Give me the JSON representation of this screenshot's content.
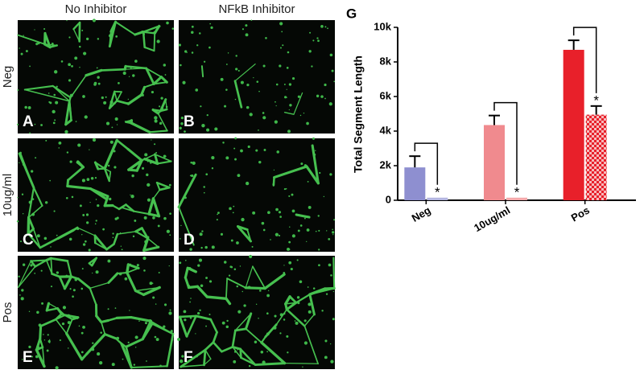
{
  "panels": {
    "column_titles": [
      "No Inhibitor",
      "NFkB Inhibitor"
    ],
    "row_titles": [
      "Neg",
      "10ug/ml",
      "Pos"
    ],
    "letters": [
      "A",
      "B",
      "C",
      "D",
      "E",
      "F"
    ]
  },
  "chart_data": {
    "type": "bar",
    "panel_letter": "G",
    "y_label": "Total Segment Length",
    "categories": [
      "Neg",
      "10ug/ml",
      "Pos"
    ],
    "series": [
      {
        "colors": [
          "#8e8fd0",
          "#f08a8e",
          "#e8202a"
        ],
        "values": [
          1900,
          4350,
          8700
        ],
        "errors": [
          650,
          550,
          550
        ]
      },
      {
        "colors": [
          "#b4b6e0",
          "#f4a9ab",
          "#e8202a"
        ],
        "pattern": [
          false,
          false,
          true
        ],
        "values": [
          150,
          150,
          4950
        ],
        "errors": [
          0,
          0,
          500
        ],
        "significance": [
          "*",
          "*",
          "*"
        ]
      }
    ],
    "ylim": [
      0,
      10000
    ],
    "yticks": [
      0,
      {
        "value": 2000,
        "label": "2k"
      },
      {
        "value": 4000,
        "label": "4k"
      },
      {
        "value": 6000,
        "label": "6k"
      },
      {
        "value": 8000,
        "label": "8k"
      },
      {
        "value": 10000,
        "label": "10k"
      }
    ]
  }
}
